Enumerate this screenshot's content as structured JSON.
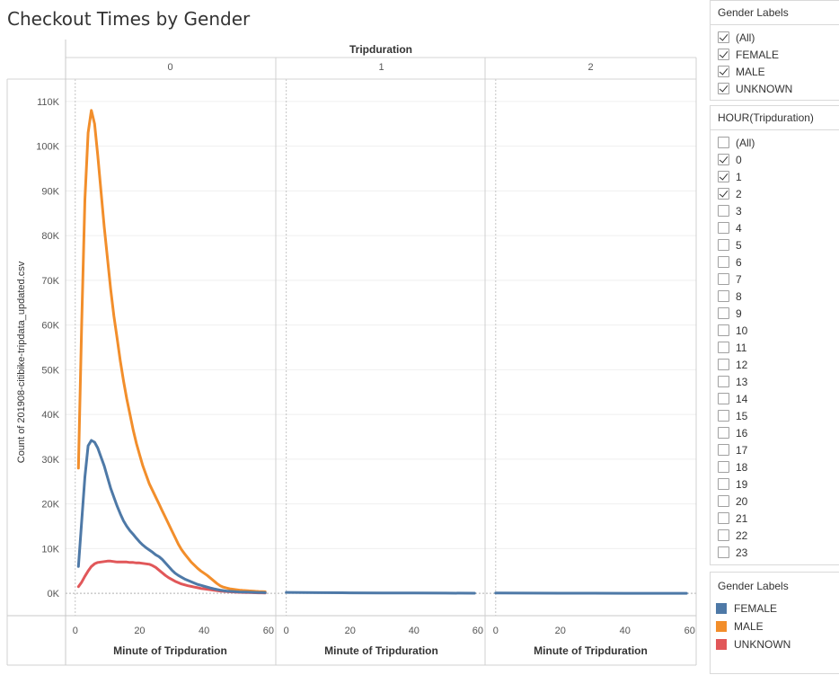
{
  "title": "Checkout Times by Gender",
  "filters": {
    "gender": {
      "title": "Gender Labels",
      "items": [
        {
          "label": "(All)",
          "checked": true
        },
        {
          "label": "FEMALE",
          "checked": true
        },
        {
          "label": "MALE",
          "checked": true
        },
        {
          "label": "UNKNOWN",
          "checked": true
        }
      ]
    },
    "hour": {
      "title": "HOUR(Tripduration)",
      "items": [
        {
          "label": "(All)",
          "checked": false
        },
        {
          "label": "0",
          "checked": true
        },
        {
          "label": "1",
          "checked": true
        },
        {
          "label": "2",
          "checked": true
        },
        {
          "label": "3",
          "checked": false
        },
        {
          "label": "4",
          "checked": false
        },
        {
          "label": "5",
          "checked": false
        },
        {
          "label": "6",
          "checked": false
        },
        {
          "label": "7",
          "checked": false
        },
        {
          "label": "8",
          "checked": false
        },
        {
          "label": "9",
          "checked": false
        },
        {
          "label": "10",
          "checked": false
        },
        {
          "label": "11",
          "checked": false
        },
        {
          "label": "12",
          "checked": false
        },
        {
          "label": "13",
          "checked": false
        },
        {
          "label": "14",
          "checked": false
        },
        {
          "label": "15",
          "checked": false
        },
        {
          "label": "16",
          "checked": false
        },
        {
          "label": "17",
          "checked": false
        },
        {
          "label": "18",
          "checked": false
        },
        {
          "label": "19",
          "checked": false
        },
        {
          "label": "20",
          "checked": false
        },
        {
          "label": "21",
          "checked": false
        },
        {
          "label": "22",
          "checked": false
        },
        {
          "label": "23",
          "checked": false
        }
      ]
    }
  },
  "legend": {
    "title": "Gender Labels",
    "items": [
      {
        "label": "FEMALE",
        "color": "#4e79a7"
      },
      {
        "label": "MALE",
        "color": "#f28e2b"
      },
      {
        "label": "UNKNOWN",
        "color": "#e15759"
      }
    ]
  },
  "chart_data": {
    "type": "line",
    "title": "Checkout Times by Gender",
    "facet_title": "Tripduration",
    "facets": [
      "0",
      "1",
      "2"
    ],
    "xlabel": "Minute of Tripduration",
    "ylabel": "Count of 201908-citibike-tripdata_updated.csv",
    "xlim": [
      -3,
      62
    ],
    "xticks": [
      0,
      20,
      40,
      60
    ],
    "ylim": [
      -5000,
      115000
    ],
    "yticks": [
      0,
      10000,
      20000,
      30000,
      40000,
      50000,
      60000,
      70000,
      80000,
      90000,
      100000,
      110000
    ],
    "ytick_labels": [
      "0K",
      "10K",
      "20K",
      "30K",
      "40K",
      "50K",
      "60K",
      "70K",
      "80K",
      "90K",
      "100K",
      "110K"
    ],
    "grid": true,
    "legend_position": "right",
    "series": [
      {
        "name": "FEMALE",
        "color": "#4e79a7",
        "facets": [
          {
            "facet": "0",
            "points": [
              [
                1,
                6000
              ],
              [
                2,
                16000
              ],
              [
                3,
                26000
              ],
              [
                4,
                33000
              ],
              [
                5,
                34200
              ],
              [
                6,
                33800
              ],
              [
                7,
                32500
              ],
              [
                8,
                30500
              ],
              [
                9,
                28500
              ],
              [
                10,
                26000
              ],
              [
                11,
                23500
              ],
              [
                12,
                21500
              ],
              [
                13,
                19500
              ],
              [
                14,
                17800
              ],
              [
                15,
                16200
              ],
              [
                16,
                15000
              ],
              [
                17,
                14000
              ],
              [
                18,
                13200
              ],
              [
                19,
                12300
              ],
              [
                20,
                11500
              ],
              [
                21,
                10800
              ],
              [
                22,
                10200
              ],
              [
                23,
                9700
              ],
              [
                24,
                9200
              ],
              [
                25,
                8600
              ],
              [
                26,
                8200
              ],
              [
                27,
                7600
              ],
              [
                28,
                6800
              ],
              [
                29,
                6000
              ],
              [
                30,
                5200
              ],
              [
                31,
                4500
              ],
              [
                32,
                4000
              ],
              [
                33,
                3600
              ],
              [
                34,
                3200
              ],
              [
                35,
                2900
              ],
              [
                36,
                2600
              ],
              [
                37,
                2300
              ],
              [
                38,
                2000
              ],
              [
                39,
                1800
              ],
              [
                40,
                1600
              ],
              [
                41,
                1400
              ],
              [
                42,
                1200
              ],
              [
                43,
                1000
              ],
              [
                44,
                850
              ],
              [
                45,
                700
              ],
              [
                46,
                600
              ],
              [
                47,
                500
              ],
              [
                48,
                450
              ],
              [
                49,
                400
              ],
              [
                50,
                350
              ],
              [
                51,
                300
              ],
              [
                52,
                280
              ],
              [
                53,
                260
              ],
              [
                54,
                240
              ],
              [
                55,
                220
              ],
              [
                56,
                200
              ],
              [
                57,
                180
              ],
              [
                58,
                170
              ],
              [
                59,
                150
              ]
            ]
          },
          {
            "facet": "1",
            "points": [
              [
                0,
                200
              ],
              [
                10,
                150
              ],
              [
                20,
                100
              ],
              [
                30,
                80
              ],
              [
                40,
                60
              ],
              [
                50,
                40
              ],
              [
                59,
                20
              ]
            ]
          },
          {
            "facet": "2",
            "points": [
              [
                0,
                60
              ],
              [
                10,
                40
              ],
              [
                20,
                30
              ],
              [
                30,
                20
              ],
              [
                40,
                15
              ],
              [
                50,
                10
              ],
              [
                59,
                5
              ]
            ]
          }
        ]
      },
      {
        "name": "MALE",
        "color": "#f28e2b",
        "facets": [
          {
            "facet": "0",
            "points": [
              [
                1,
                28000
              ],
              [
                2,
                60000
              ],
              [
                3,
                88000
              ],
              [
                4,
                103000
              ],
              [
                5,
                108000
              ],
              [
                6,
                105000
              ],
              [
                7,
                98000
              ],
              [
                8,
                90000
              ],
              [
                9,
                82000
              ],
              [
                10,
                75000
              ],
              [
                11,
                68000
              ],
              [
                12,
                62000
              ],
              [
                13,
                57000
              ],
              [
                14,
                52000
              ],
              [
                15,
                47500
              ],
              [
                16,
                43500
              ],
              [
                17,
                40000
              ],
              [
                18,
                36500
              ],
              [
                19,
                33500
              ],
              [
                20,
                31000
              ],
              [
                21,
                28500
              ],
              [
                22,
                26500
              ],
              [
                23,
                24500
              ],
              [
                24,
                23000
              ],
              [
                25,
                21500
              ],
              [
                26,
                20000
              ],
              [
                27,
                18500
              ],
              [
                28,
                17000
              ],
              [
                29,
                15500
              ],
              [
                30,
                14000
              ],
              [
                31,
                12500
              ],
              [
                32,
                11000
              ],
              [
                33,
                9800
              ],
              [
                34,
                8800
              ],
              [
                35,
                7900
              ],
              [
                36,
                7000
              ],
              [
                37,
                6300
              ],
              [
                38,
                5600
              ],
              [
                39,
                5000
              ],
              [
                40,
                4500
              ],
              [
                41,
                4000
              ],
              [
                42,
                3400
              ],
              [
                43,
                2800
              ],
              [
                44,
                2200
              ],
              [
                45,
                1700
              ],
              [
                46,
                1400
              ],
              [
                47,
                1200
              ],
              [
                48,
                1000
              ],
              [
                49,
                900
              ],
              [
                50,
                800
              ],
              [
                51,
                700
              ],
              [
                52,
                650
              ],
              [
                53,
                600
              ],
              [
                54,
                550
              ],
              [
                55,
                500
              ],
              [
                56,
                450
              ],
              [
                57,
                400
              ],
              [
                58,
                380
              ],
              [
                59,
                350
              ]
            ]
          }
        ]
      },
      {
        "name": "UNKNOWN",
        "color": "#e15759",
        "facets": [
          {
            "facet": "0",
            "points": [
              [
                1,
                1500
              ],
              [
                2,
                2500
              ],
              [
                3,
                3800
              ],
              [
                4,
                5000
              ],
              [
                5,
                6000
              ],
              [
                6,
                6600
              ],
              [
                7,
                6900
              ],
              [
                8,
                7000
              ],
              [
                9,
                7100
              ],
              [
                10,
                7200
              ],
              [
                11,
                7200
              ],
              [
                12,
                7100
              ],
              [
                13,
                7000
              ],
              [
                14,
                7000
              ],
              [
                15,
                7000
              ],
              [
                16,
                7000
              ],
              [
                17,
                6900
              ],
              [
                18,
                6900
              ],
              [
                19,
                6800
              ],
              [
                20,
                6800
              ],
              [
                21,
                6700
              ],
              [
                22,
                6600
              ],
              [
                23,
                6500
              ],
              [
                24,
                6200
              ],
              [
                25,
                5800
              ],
              [
                26,
                5200
              ],
              [
                27,
                4600
              ],
              [
                28,
                4000
              ],
              [
                29,
                3500
              ],
              [
                30,
                3100
              ],
              [
                31,
                2700
              ],
              [
                32,
                2400
              ],
              [
                33,
                2100
              ],
              [
                34,
                1900
              ],
              [
                35,
                1700
              ],
              [
                36,
                1550
              ],
              [
                37,
                1400
              ],
              [
                38,
                1250
              ],
              [
                39,
                1100
              ],
              [
                40,
                1000
              ],
              [
                41,
                900
              ],
              [
                42,
                800
              ],
              [
                43,
                700
              ],
              [
                44,
                600
              ],
              [
                45,
                500
              ],
              [
                46,
                450
              ],
              [
                47,
                400
              ],
              [
                48,
                350
              ],
              [
                49,
                300
              ],
              [
                50,
                250
              ],
              [
                51,
                220
              ],
              [
                52,
                200
              ],
              [
                53,
                180
              ],
              [
                54,
                160
              ],
              [
                55,
                140
              ],
              [
                56,
                120
              ],
              [
                57,
                110
              ],
              [
                58,
                100
              ],
              [
                59,
                90
              ]
            ]
          }
        ]
      }
    ]
  }
}
